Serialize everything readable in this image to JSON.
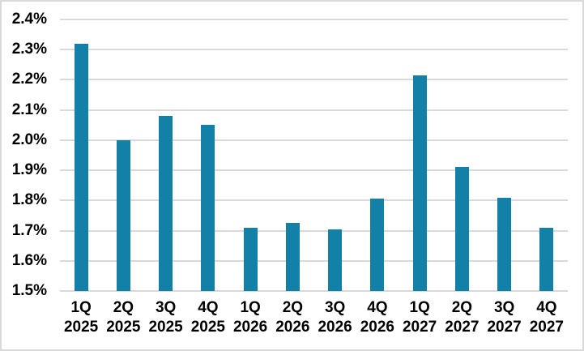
{
  "chart_data": {
    "type": "bar",
    "title": "",
    "categories": [
      "1Q 2025",
      "2Q 2025",
      "3Q 2025",
      "4Q 2025",
      "1Q 2026",
      "2Q 2026",
      "3Q 2026",
      "4Q 2026",
      "1Q 2027",
      "2Q 2027",
      "3Q 2027",
      "4Q 2027"
    ],
    "values": [
      2.32,
      2.0,
      2.08,
      2.05,
      1.71,
      1.725,
      1.705,
      1.805,
      2.215,
      1.91,
      1.81,
      1.71
    ],
    "unit": "%",
    "xlabel": "",
    "ylabel": "",
    "ylim": [
      1.5,
      2.4
    ],
    "ytick_step": 0.1,
    "yticks": [
      {
        "label": "2.4%",
        "value": 2.4
      },
      {
        "label": "2.3%",
        "value": 2.3
      },
      {
        "label": "2.2%",
        "value": 2.2
      },
      {
        "label": "2.1%",
        "value": 2.1
      },
      {
        "label": "2.0%",
        "value": 2.0
      },
      {
        "label": "1.9%",
        "value": 1.9
      },
      {
        "label": "1.8%",
        "value": 1.8
      },
      {
        "label": "1.7%",
        "value": 1.7
      },
      {
        "label": "1.6%",
        "value": 1.6
      },
      {
        "label": "1.5%",
        "value": 1.5
      }
    ],
    "grid": true,
    "legend": "none",
    "colors": {
      "bar": "#1380a8",
      "gridline": "#d9d9d9",
      "axis_line": "#d9d9d9",
      "label_text": "#000000",
      "background": "#ffffff",
      "frame_border": "#d9d9d9"
    }
  }
}
